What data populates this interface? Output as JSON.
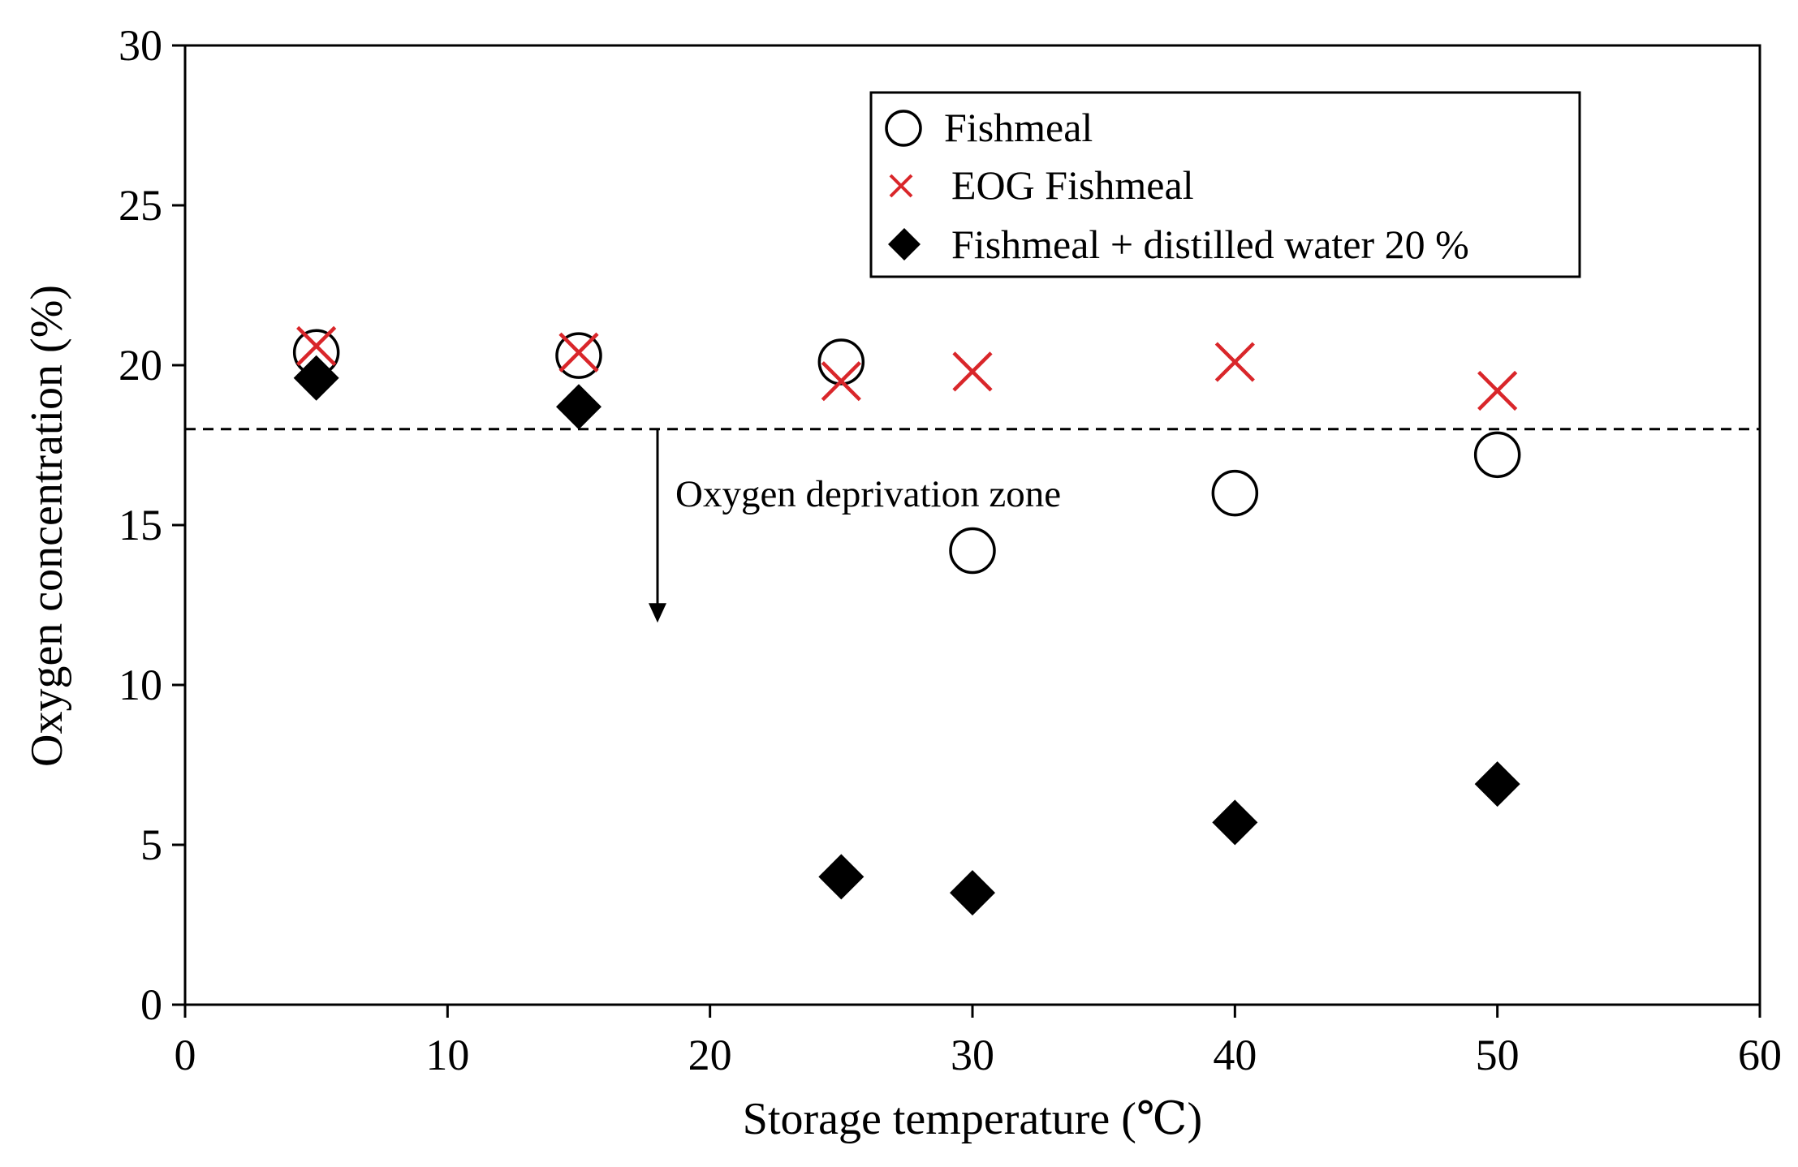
{
  "chart_data": {
    "type": "scatter",
    "title": "",
    "xlabel": "Storage temperature (℃)",
    "ylabel": "Oxygen concentration (%)",
    "xlim": [
      0,
      60
    ],
    "ylim": [
      0,
      30
    ],
    "x_ticks": [
      0,
      10,
      20,
      30,
      40,
      50,
      60
    ],
    "y_ticks": [
      0,
      5,
      10,
      15,
      20,
      25,
      30
    ],
    "x_tick_labels": [
      "0",
      "10",
      "20",
      "30",
      "40",
      "50",
      "60"
    ],
    "y_tick_labels": [
      "0",
      "5",
      "10",
      "15",
      "20",
      "25",
      "30"
    ],
    "grid": false,
    "legend_position": "top-right",
    "threshold_line": {
      "y": 18,
      "style": "dashed"
    },
    "annotation": {
      "text": "Oxygen deprivation zone",
      "arrow_from_y": 18,
      "arrow_to_y": 12,
      "arrow_x": 18
    },
    "series": [
      {
        "name": "Fishmeal",
        "marker": "open-circle",
        "color": "#000000",
        "x": [
          5,
          15,
          25,
          30,
          40,
          50
        ],
        "y": [
          20.4,
          20.3,
          20.1,
          14.2,
          16.0,
          17.2
        ]
      },
      {
        "name": "EOG Fishmeal",
        "marker": "x",
        "color": "#d9262a",
        "x": [
          5,
          15,
          25,
          30,
          40,
          50
        ],
        "y": [
          20.6,
          20.4,
          19.5,
          19.8,
          20.1,
          19.2
        ]
      },
      {
        "name": "Fishmeal + distilled water 20 %",
        "marker": "filled-diamond",
        "color": "#000000",
        "x": [
          5,
          15,
          25,
          30,
          40,
          50
        ],
        "y": [
          19.6,
          18.7,
          4.0,
          3.5,
          5.7,
          6.9
        ]
      }
    ]
  }
}
